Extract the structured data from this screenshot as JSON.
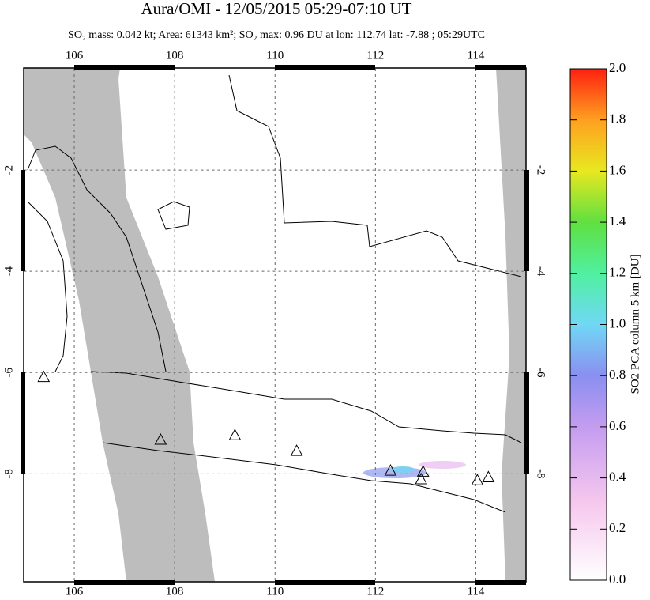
{
  "chart_data": {
    "type": "map",
    "title": "Aura/OMI - 12/05/2015 05:29-07:10 UT",
    "subtitle": "SO₂ mass: 0.042 kt; Area: 61343 km²; SO₂ max: 0.96 DU at lon: 112.74 lat: -7.88 ; 05:29UTC",
    "xlim": [
      105,
      115
    ],
    "ylim": [
      -10.15,
      0
    ],
    "xticks": [
      106,
      108,
      110,
      112,
      114
    ],
    "yticks": [
      -2,
      -4,
      -6,
      -8
    ],
    "grid": true,
    "volcanoes": {
      "lon": [
        105.39,
        107.72,
        109.2,
        110.43,
        112.3,
        112.95,
        112.91,
        114.03,
        114.25
      ],
      "lat": [
        -6.1,
        -7.34,
        -7.25,
        -7.56,
        -7.95,
        -7.97,
        -8.12,
        -8.14,
        -8.08
      ]
    },
    "colorbar": {
      "label": "SO2 PCA column 5 km [DU]",
      "clim": [
        0,
        2
      ],
      "ticks": [
        {
          "value": 0,
          "label": "0.0"
        },
        {
          "value": 0.2,
          "label": "0.2"
        },
        {
          "value": 0.4,
          "label": "0.4"
        },
        {
          "value": 0.6,
          "label": "0.6"
        },
        {
          "value": 0.8,
          "label": "0.8"
        },
        {
          "value": 1,
          "label": "1.0"
        },
        {
          "value": 1.2,
          "label": "1.2"
        },
        {
          "value": 1.4,
          "label": "1.4"
        },
        {
          "value": 1.6,
          "label": "1.6"
        },
        {
          "value": 1.8,
          "label": "1.8"
        },
        {
          "value": 2,
          "label": "2.0"
        }
      ]
    }
  }
}
